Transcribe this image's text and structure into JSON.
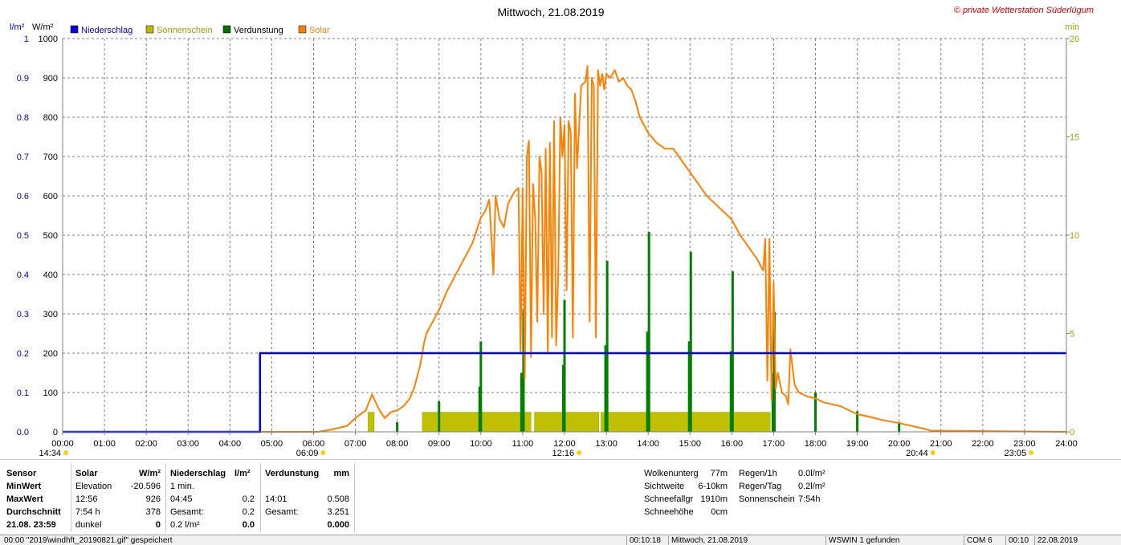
{
  "chart_data": {
    "type": "line",
    "title": "Mittwoch, 21.08.2019",
    "copyright": "© private Wetterstation Süderlügum",
    "y_left_inner": {
      "unit": "l/m²",
      "ticks": [
        "0.0",
        "0.1",
        "0.2",
        "0.3",
        "0.4",
        "0.5",
        "0.6",
        "0.7",
        "0.8",
        "0.9",
        "1"
      ],
      "range": [
        0,
        1
      ]
    },
    "y_left_outer": {
      "unit": "W/m²",
      "ticks": [
        "0",
        "100",
        "200",
        "300",
        "400",
        "500",
        "600",
        "700",
        "800",
        "900",
        "1000"
      ],
      "range": [
        0,
        1000
      ]
    },
    "y_right": {
      "unit": "min",
      "ticks": [
        "0",
        "5",
        "10",
        "15",
        "20"
      ],
      "range": [
        0,
        20
      ]
    },
    "x_ticks": [
      "00:00",
      "01:00",
      "02:00",
      "03:00",
      "04:00",
      "05:00",
      "06:00",
      "07:00",
      "08:00",
      "09:00",
      "10:00",
      "11:00",
      "12:00",
      "13:00",
      "14:00",
      "15:00",
      "16:00",
      "17:00",
      "18:00",
      "19:00",
      "20:00",
      "21:00",
      "22:00",
      "23:00",
      "24:00"
    ],
    "grid": true,
    "legend": [
      {
        "name": "Niederschlag",
        "color": "#0000e0"
      },
      {
        "name": "Sonnenschein",
        "color": "#b8b800"
      },
      {
        "name": "Verdunstung",
        "color": "#007000"
      },
      {
        "name": "Solar",
        "color": "#ff8000"
      }
    ],
    "legend_placement": "top-left",
    "markers": [
      {
        "label": "14:34",
        "hour": 0,
        "row": 1
      },
      {
        "label": "06:09",
        "hour": 6.15,
        "row": 1
      },
      {
        "label": "12:16",
        "hour": 12.27,
        "row": 1
      },
      {
        "label": "20:44",
        "hour": 20.73,
        "row": 1
      },
      {
        "label": "23:05",
        "hour": 23.08,
        "row": 1
      }
    ],
    "niederschlag": {
      "name": "Niederschlag",
      "x_hours": [
        0,
        4.72,
        4.72,
        24
      ],
      "y": [
        0,
        0,
        0.2,
        0.2
      ]
    },
    "sonnenschein": {
      "name": "Sonnenschein",
      "blocks": [
        [
          7.3,
          7.45
        ],
        [
          8.6,
          11.2
        ],
        [
          11.28,
          12.82
        ],
        [
          12.87,
          16.92
        ]
      ],
      "value_min": 1
    },
    "verdunstung": {
      "name": "Verdunstung",
      "bars": [
        {
          "h": 8.0,
          "v": 0.025
        },
        {
          "h": 9.0,
          "v": 0.078
        },
        {
          "h": 9.97,
          "v": 0.115
        },
        {
          "h": 10.0,
          "v": 0.23
        },
        {
          "h": 10.97,
          "v": 0.15
        },
        {
          "h": 11.02,
          "v": 0.31
        },
        {
          "h": 11.97,
          "v": 0.17
        },
        {
          "h": 12.0,
          "v": 0.335
        },
        {
          "h": 12.98,
          "v": 0.22
        },
        {
          "h": 13.02,
          "v": 0.435
        },
        {
          "h": 13.98,
          "v": 0.255
        },
        {
          "h": 14.02,
          "v": 0.508
        },
        {
          "h": 14.98,
          "v": 0.23
        },
        {
          "h": 15.02,
          "v": 0.458
        },
        {
          "h": 15.98,
          "v": 0.205
        },
        {
          "h": 16.02,
          "v": 0.408
        },
        {
          "h": 16.98,
          "v": 0.15
        },
        {
          "h": 17.02,
          "v": 0.305
        },
        {
          "h": 18.0,
          "v": 0.1
        },
        {
          "h": 19.0,
          "v": 0.052
        },
        {
          "h": 20.0,
          "v": 0.025
        }
      ]
    },
    "solar": {
      "name": "Solar",
      "x_hours": [
        0,
        6.1,
        6.4,
        6.8,
        7.0,
        7.25,
        7.4,
        7.55,
        7.7,
        7.85,
        8.0,
        8.15,
        8.3,
        8.4,
        8.55,
        8.65,
        8.7,
        8.85,
        9.0,
        9.2,
        9.5,
        9.8,
        10.0,
        10.1,
        10.2,
        10.3,
        10.35,
        10.45,
        10.55,
        10.65,
        10.8,
        10.9,
        10.95,
        11.0,
        11.05,
        11.1,
        11.15,
        11.2,
        11.25,
        11.3,
        11.35,
        11.4,
        11.45,
        11.5,
        11.55,
        11.6,
        11.65,
        11.7,
        11.75,
        11.8,
        11.85,
        11.9,
        11.95,
        12.0,
        12.05,
        12.1,
        12.15,
        12.2,
        12.25,
        12.3,
        12.4,
        12.5,
        12.55,
        12.6,
        12.65,
        12.7,
        12.75,
        12.8,
        12.85,
        12.9,
        12.95,
        13.0,
        13.1,
        13.2,
        13.3,
        13.4,
        13.5,
        13.6,
        13.7,
        13.8,
        14.0,
        14.2,
        14.4,
        14.6,
        14.8,
        15.0,
        15.2,
        15.4,
        15.6,
        15.8,
        16.0,
        16.2,
        16.4,
        16.6,
        16.75,
        16.8,
        16.85,
        16.9,
        16.95,
        17.0,
        17.05,
        17.1,
        17.2,
        17.3,
        17.35,
        17.4,
        17.5,
        17.6,
        17.8,
        18.0,
        18.2,
        18.4,
        18.6,
        18.8,
        19.0,
        19.3,
        19.6,
        20.0,
        20.3,
        20.6,
        20.75,
        24
      ],
      "y": [
        0,
        0,
        5,
        15,
        35,
        55,
        95,
        60,
        35,
        50,
        55,
        65,
        85,
        110,
        170,
        230,
        250,
        280,
        310,
        360,
        420,
        480,
        545,
        560,
        590,
        400,
        600,
        540,
        520,
        580,
        610,
        620,
        200,
        620,
        135,
        700,
        740,
        190,
        630,
        540,
        280,
        700,
        660,
        300,
        720,
        200,
        735,
        240,
        790,
        220,
        400,
        800,
        700,
        780,
        360,
        790,
        760,
        240,
        860,
        670,
        880,
        890,
        930,
        280,
        900,
        880,
        240,
        920,
        880,
        910,
        870,
        910,
        900,
        920,
        890,
        900,
        880,
        870,
        840,
        800,
        760,
        735,
        720,
        720,
        690,
        660,
        630,
        600,
        580,
        560,
        540,
        500,
        470,
        440,
        410,
        490,
        130,
        490,
        80,
        380,
        110,
        150,
        100,
        90,
        70,
        210,
        120,
        100,
        90,
        85,
        75,
        70,
        65,
        55,
        45,
        38,
        30,
        22,
        15,
        8,
        3,
        0
      ]
    }
  },
  "info": {
    "headers": {
      "sensor": "Sensor",
      "solar": "Solar",
      "solar_unit": "W/m²",
      "nieder": "Niederschlag",
      "nieder_unit": "l/m²",
      "verdunst": "Verdunstung",
      "verdunst_unit": "mm"
    },
    "rows": [
      {
        "label": "MinWert",
        "solar_a": "Elevation",
        "solar_b": "-20.596",
        "nieder_a": "1 min.",
        "nieder_b": "",
        "verd_a": "",
        "verd_b": ""
      },
      {
        "label": "MaxWert",
        "solar_a": "12:56",
        "solar_b": "926",
        "nieder_a": "04:45",
        "nieder_b": "0.2",
        "verd_a": "14:01",
        "verd_b": "0.508"
      },
      {
        "label": "Durchschnitt",
        "solar_a": "7:54 h",
        "solar_b": "378",
        "nieder_a": "Gesamt:",
        "nieder_b": "0.2",
        "verd_a": "Gesamt:",
        "verd_b": "3.251"
      },
      {
        "label": "21.08. 23:59",
        "solar_a": "dunkel",
        "solar_b": "0",
        "nieder_a": "0.2 l/m²",
        "nieder_b": "0.0",
        "verd_a": "",
        "verd_b": "0.000"
      }
    ],
    "weather": [
      {
        "label": "Wolkenunterg",
        "value": "77m"
      },
      {
        "label": "Sichtweite",
        "value": "6-10km"
      },
      {
        "label": "Schneefallgr",
        "value": "1910m"
      },
      {
        "label": "Schneehöhe",
        "value": "0cm"
      }
    ],
    "rain": [
      {
        "label": "Regen/1h",
        "value": "0.0l/m²"
      },
      {
        "label": "Regen/Tag",
        "value": "0.2l/m²"
      },
      {
        "label": "Sonnenschein",
        "value": "7:54h"
      }
    ]
  },
  "statusbar": {
    "message": "00:00 \"2019\\windhft_20190821.gif\" gespeichert",
    "time1": "00:10:18",
    "date_text": "Mittwoch, 21.08.2019",
    "ws": "WSWIN 1 gefunden",
    "com": "COM 6",
    "time2": "00:10",
    "date2": "22.08.2019"
  }
}
